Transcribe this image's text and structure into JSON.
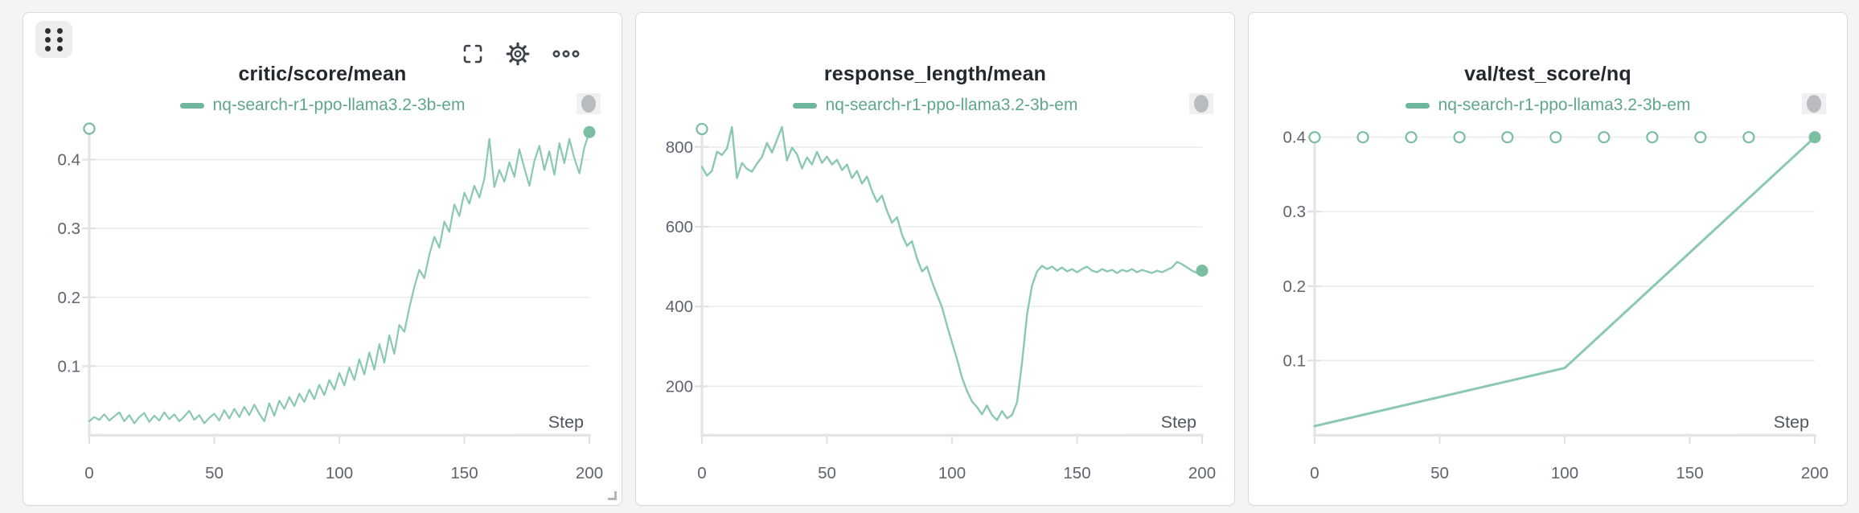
{
  "theme": {
    "page_bg": "#f4f4f5",
    "card_bg": "#ffffff",
    "card_border": "#d9dbdd",
    "series_line": "#8ac9ae",
    "series_end_dot": "#7bbfa3",
    "marker_stroke": "#79bda1",
    "legend_text": "#5ea78b",
    "legend_dash": "#6fb79c",
    "title_text": "#23272e",
    "grid_line": "#ececee",
    "axis_line": "#e3e4e6",
    "tick_mark": "#dfe1e4",
    "tick_label": "#5d646d",
    "step_label": "#50565e",
    "icon_color": "#3d434b",
    "pill_bg": "#f0f0f2",
    "pill_fill": "#b9bcbe"
  },
  "toolbar": {
    "icons": [
      "grip-dots-drag-handle",
      "fullscreen-icon",
      "gear-icon",
      "ellipsis-icon"
    ],
    "sampling_pill_icon": "sampling-indicator-pill"
  },
  "chart_data": [
    {
      "type": "line",
      "title": "critic/score/mean",
      "legend": "nq-search-r1-ppo-llama3.2-3b-em",
      "x": {
        "label": "Step",
        "min": 0,
        "max": 200,
        "ticks": [
          [
            0,
            "0"
          ],
          [
            50,
            "50"
          ],
          [
            100,
            "100"
          ],
          [
            150,
            "150"
          ],
          [
            200,
            "200"
          ]
        ]
      },
      "y": {
        "min": 0,
        "max": 0.452,
        "axis_top_marker": 0.445,
        "ticks": [
          [
            0.1,
            "0.1"
          ],
          [
            0.2,
            "0.2"
          ],
          [
            0.3,
            "0.3"
          ],
          [
            0.4,
            "0.4"
          ]
        ]
      },
      "stroke_width": 2.2,
      "end_dot": true,
      "points": [
        [
          0,
          0.02
        ],
        [
          2,
          0.026
        ],
        [
          4,
          0.022
        ],
        [
          6,
          0.03
        ],
        [
          8,
          0.021
        ],
        [
          10,
          0.027
        ],
        [
          12,
          0.033
        ],
        [
          14,
          0.02
        ],
        [
          16,
          0.029
        ],
        [
          18,
          0.017
        ],
        [
          20,
          0.026
        ],
        [
          22,
          0.032
        ],
        [
          24,
          0.019
        ],
        [
          26,
          0.028
        ],
        [
          28,
          0.021
        ],
        [
          30,
          0.033
        ],
        [
          32,
          0.023
        ],
        [
          34,
          0.03
        ],
        [
          36,
          0.02
        ],
        [
          38,
          0.027
        ],
        [
          40,
          0.035
        ],
        [
          42,
          0.022
        ],
        [
          44,
          0.029
        ],
        [
          46,
          0.017
        ],
        [
          48,
          0.025
        ],
        [
          50,
          0.031
        ],
        [
          52,
          0.021
        ],
        [
          54,
          0.036
        ],
        [
          56,
          0.024
        ],
        [
          58,
          0.038
        ],
        [
          60,
          0.026
        ],
        [
          62,
          0.041
        ],
        [
          64,
          0.029
        ],
        [
          66,
          0.044
        ],
        [
          68,
          0.031
        ],
        [
          70,
          0.02
        ],
        [
          72,
          0.046
        ],
        [
          74,
          0.028
        ],
        [
          76,
          0.05
        ],
        [
          78,
          0.038
        ],
        [
          80,
          0.055
        ],
        [
          82,
          0.042
        ],
        [
          84,
          0.06
        ],
        [
          86,
          0.048
        ],
        [
          88,
          0.066
        ],
        [
          90,
          0.052
        ],
        [
          92,
          0.073
        ],
        [
          94,
          0.058
        ],
        [
          96,
          0.08
        ],
        [
          98,
          0.066
        ],
        [
          100,
          0.09
        ],
        [
          102,
          0.072
        ],
        [
          104,
          0.098
        ],
        [
          106,
          0.08
        ],
        [
          108,
          0.11
        ],
        [
          110,
          0.088
        ],
        [
          112,
          0.12
        ],
        [
          114,
          0.095
        ],
        [
          116,
          0.132
        ],
        [
          118,
          0.105
        ],
        [
          120,
          0.145
        ],
        [
          122,
          0.118
        ],
        [
          124,
          0.16
        ],
        [
          126,
          0.15
        ],
        [
          128,
          0.185
        ],
        [
          130,
          0.215
        ],
        [
          132,
          0.24
        ],
        [
          134,
          0.228
        ],
        [
          136,
          0.262
        ],
        [
          138,
          0.288
        ],
        [
          140,
          0.272
        ],
        [
          142,
          0.31
        ],
        [
          144,
          0.295
        ],
        [
          146,
          0.335
        ],
        [
          148,
          0.318
        ],
        [
          150,
          0.352
        ],
        [
          152,
          0.336
        ],
        [
          154,
          0.362
        ],
        [
          156,
          0.345
        ],
        [
          158,
          0.372
        ],
        [
          160,
          0.43
        ],
        [
          162,
          0.36
        ],
        [
          164,
          0.385
        ],
        [
          166,
          0.368
        ],
        [
          168,
          0.396
        ],
        [
          170,
          0.375
        ],
        [
          172,
          0.415
        ],
        [
          174,
          0.388
        ],
        [
          176,
          0.362
        ],
        [
          178,
          0.398
        ],
        [
          180,
          0.42
        ],
        [
          182,
          0.385
        ],
        [
          184,
          0.412
        ],
        [
          186,
          0.378
        ],
        [
          188,
          0.424
        ],
        [
          190,
          0.395
        ],
        [
          192,
          0.43
        ],
        [
          194,
          0.402
        ],
        [
          196,
          0.38
        ],
        [
          198,
          0.418
        ],
        [
          200,
          0.44
        ]
      ]
    },
    {
      "type": "line",
      "title": "response_length/mean",
      "legend": "nq-search-r1-ppo-llama3.2-3b-em",
      "x": {
        "label": "Step",
        "min": 0,
        "max": 200,
        "ticks": [
          [
            0,
            "0"
          ],
          [
            50,
            "50"
          ],
          [
            100,
            "100"
          ],
          [
            150,
            "150"
          ],
          [
            200,
            "200"
          ]
        ]
      },
      "y": {
        "min": 78,
        "max": 858,
        "axis_top_marker": 845,
        "ticks": [
          [
            200,
            "200"
          ],
          [
            400,
            "400"
          ],
          [
            600,
            "600"
          ],
          [
            800,
            "800"
          ]
        ]
      },
      "stroke_width": 2.4,
      "end_dot": true,
      "points": [
        [
          0,
          750
        ],
        [
          2,
          728
        ],
        [
          4,
          740
        ],
        [
          6,
          788
        ],
        [
          8,
          780
        ],
        [
          10,
          796
        ],
        [
          12,
          850
        ],
        [
          14,
          722
        ],
        [
          16,
          760
        ],
        [
          18,
          745
        ],
        [
          20,
          738
        ],
        [
          22,
          758
        ],
        [
          24,
          775
        ],
        [
          26,
          810
        ],
        [
          28,
          786
        ],
        [
          30,
          818
        ],
        [
          32,
          850
        ],
        [
          34,
          766
        ],
        [
          36,
          798
        ],
        [
          38,
          782
        ],
        [
          40,
          746
        ],
        [
          42,
          774
        ],
        [
          44,
          756
        ],
        [
          46,
          788
        ],
        [
          48,
          760
        ],
        [
          50,
          776
        ],
        [
          52,
          756
        ],
        [
          54,
          768
        ],
        [
          56,
          742
        ],
        [
          58,
          756
        ],
        [
          60,
          722
        ],
        [
          62,
          740
        ],
        [
          64,
          708
        ],
        [
          66,
          726
        ],
        [
          68,
          690
        ],
        [
          70,
          662
        ],
        [
          72,
          678
        ],
        [
          74,
          640
        ],
        [
          76,
          610
        ],
        [
          78,
          624
        ],
        [
          80,
          580
        ],
        [
          82,
          552
        ],
        [
          84,
          564
        ],
        [
          86,
          520
        ],
        [
          88,
          488
        ],
        [
          90,
          500
        ],
        [
          92,
          462
        ],
        [
          94,
          430
        ],
        [
          96,
          398
        ],
        [
          98,
          352
        ],
        [
          100,
          310
        ],
        [
          102,
          268
        ],
        [
          104,
          222
        ],
        [
          106,
          188
        ],
        [
          108,
          162
        ],
        [
          110,
          148
        ],
        [
          112,
          130
        ],
        [
          114,
          152
        ],
        [
          116,
          128
        ],
        [
          118,
          115
        ],
        [
          120,
          138
        ],
        [
          122,
          120
        ],
        [
          124,
          128
        ],
        [
          126,
          160
        ],
        [
          128,
          260
        ],
        [
          130,
          380
        ],
        [
          132,
          452
        ],
        [
          134,
          488
        ],
        [
          136,
          502
        ],
        [
          138,
          494
        ],
        [
          140,
          500
        ],
        [
          142,
          490
        ],
        [
          144,
          498
        ],
        [
          146,
          488
        ],
        [
          148,
          494
        ],
        [
          150,
          486
        ],
        [
          152,
          494
        ],
        [
          154,
          500
        ],
        [
          156,
          490
        ],
        [
          158,
          486
        ],
        [
          160,
          494
        ],
        [
          162,
          488
        ],
        [
          164,
          492
        ],
        [
          166,
          484
        ],
        [
          168,
          492
        ],
        [
          170,
          488
        ],
        [
          172,
          494
        ],
        [
          174,
          486
        ],
        [
          176,
          492
        ],
        [
          178,
          488
        ],
        [
          180,
          484
        ],
        [
          182,
          490
        ],
        [
          184,
          486
        ],
        [
          186,
          492
        ],
        [
          188,
          498
        ],
        [
          190,
          512
        ],
        [
          192,
          506
        ],
        [
          194,
          498
        ],
        [
          196,
          490
        ],
        [
          198,
          484
        ],
        [
          200,
          490
        ]
      ]
    },
    {
      "type": "line",
      "title": "val/test_score/nq",
      "legend": "nq-search-r1-ppo-llama3.2-3b-em",
      "x": {
        "label": "Step",
        "min": 0,
        "max": 200,
        "ticks": [
          [
            0,
            "0"
          ],
          [
            50,
            "50"
          ],
          [
            100,
            "100"
          ],
          [
            150,
            "150"
          ],
          [
            200,
            "200"
          ]
        ]
      },
      "y": {
        "min": 0,
        "max": 0.418,
        "ticks": [
          [
            0.1,
            "0.1"
          ],
          [
            0.2,
            "0.2"
          ],
          [
            0.3,
            "0.3"
          ],
          [
            0.4,
            "0.4"
          ]
        ]
      },
      "stroke_width": 3,
      "end_dot": true,
      "top_markers": {
        "value": 0.4,
        "steps": [
          0,
          19.3,
          38.6,
          57.9,
          77.1,
          96.4,
          115.7,
          135.0,
          154.3,
          173.6
        ]
      },
      "points": [
        [
          0,
          0.012
        ],
        [
          100,
          0.09
        ],
        [
          200,
          0.4
        ]
      ]
    }
  ]
}
